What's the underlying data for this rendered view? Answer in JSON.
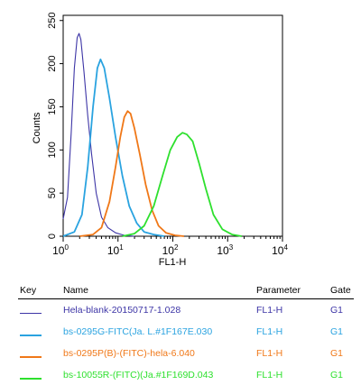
{
  "chart_data": {
    "type": "line",
    "xlabel": "FL1-H",
    "ylabel": "Counts",
    "xscale": "log",
    "xlim": [
      1,
      10000
    ],
    "ylim": [
      0,
      256
    ],
    "xticks": [
      1,
      10,
      100,
      1000,
      10000
    ],
    "yticks": [
      0,
      50,
      100,
      150,
      200,
      250
    ],
    "series": [
      {
        "name": "Hela-blank-20150717-1.028",
        "color": "#3d35a6",
        "x": [
          1.0,
          1.2,
          1.4,
          1.6,
          1.8,
          1.95,
          2.1,
          2.4,
          2.8,
          3.3,
          4.0,
          5.0,
          6.5,
          9.0,
          13.0,
          20.0
        ],
        "y": [
          20,
          45,
          120,
          195,
          230,
          235,
          228,
          190,
          140,
          95,
          50,
          22,
          10,
          4,
          1,
          0
        ]
      },
      {
        "name": "bs-0295G-FITC(Ja. L.#1F167E.030",
        "color": "#2aa3e0",
        "x": [
          1.0,
          1.6,
          2.2,
          2.8,
          3.5,
          4.2,
          4.8,
          5.6,
          7.0,
          9.0,
          12.0,
          16.0,
          22.0,
          30.0,
          45.0,
          70.0
        ],
        "y": [
          0,
          5,
          25,
          80,
          150,
          195,
          205,
          195,
          160,
          115,
          70,
          35,
          15,
          5,
          2,
          0
        ]
      },
      {
        "name": "bs-0295P(B)-(FITC)-hela-6.040",
        "color": "#f07818",
        "x": [
          2.0,
          3.5,
          5.0,
          7.0,
          9.0,
          11.0,
          13.0,
          15.0,
          17.0,
          20.0,
          25.0,
          32.0,
          42.0,
          55.0,
          75.0,
          110.0,
          160.0
        ],
        "y": [
          0,
          2,
          10,
          40,
          80,
          115,
          138,
          145,
          142,
          125,
          95,
          60,
          30,
          12,
          4,
          1,
          0
        ]
      },
      {
        "name": "bs-10055R-(FITC)(Ja.#1F169D.043",
        "color": "#2ee02e",
        "x": [
          12.0,
          20.0,
          30.0,
          45.0,
          65.0,
          90.0,
          120.0,
          150.0,
          180.0,
          230.0,
          300.0,
          400.0,
          550.0,
          800.0,
          1200.0,
          1800.0
        ],
        "y": [
          0,
          3,
          12,
          35,
          70,
          100,
          115,
          120,
          118,
          110,
          85,
          55,
          25,
          8,
          2,
          0
        ]
      }
    ]
  },
  "legend": {
    "headers": {
      "key": "Key",
      "name": "Name",
      "parameter": "Parameter",
      "gate": "Gate"
    },
    "rows": [
      {
        "name": "Hela-blank-20150717-1.028",
        "parameter": "FL1-H",
        "gate": "G1"
      },
      {
        "name": "bs-0295G-FITC(Ja. L.#1F167E.030",
        "parameter": "FL1-H",
        "gate": "G1"
      },
      {
        "name": "bs-0295P(B)-(FITC)-hela-6.040",
        "parameter": "FL1-H",
        "gate": "G1"
      },
      {
        "name": "bs-10055R-(FITC)(Ja.#1F169D.043",
        "parameter": "FL1-H",
        "gate": "G1"
      }
    ]
  }
}
